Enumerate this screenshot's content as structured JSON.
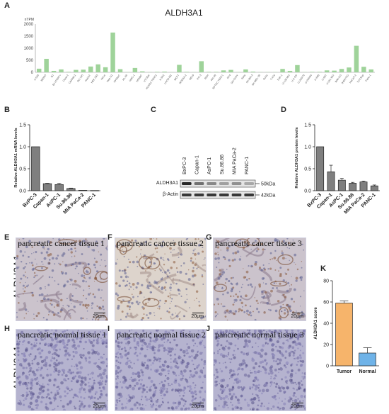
{
  "panels": {
    "a": "A",
    "b": "B",
    "c": "C",
    "d": "D",
    "e": "E",
    "f": "F",
    "g": "G",
    "h": "H",
    "i": "I",
    "j": "J",
    "k": "K"
  },
  "colors": {
    "green": "#9fd39a",
    "gray": "#7f7f7f",
    "orange": "#f6b46b",
    "blue": "#6fb3e8"
  },
  "tissues": {
    "row_label": "ALDH3A1",
    "cancer": [
      "pancreatic cancer tissue 1",
      "pancreatic cancer tissue 2",
      "pancreatic cancer tissue 3"
    ],
    "normal": [
      "pancreatic normal tissue 1",
      "pancreatic normal tissue 2",
      "pancreatic normal tissue 3"
    ],
    "scale": "20μm"
  },
  "western": {
    "lanes": [
      "BxPC-3",
      "Capan-1",
      "AsPC-1",
      "Su.86.86",
      "MIA PaCa-2",
      "PANC-1"
    ],
    "rows": [
      "ALDH3A1",
      "β-Actin"
    ],
    "markers": [
      "50kDa",
      "42kDa"
    ],
    "intensity_aldh": [
      1.0,
      0.55,
      0.4,
      0.25,
      0.35,
      0.2
    ]
  },
  "chart_data": [
    {
      "id": "A",
      "type": "bar",
      "title": "ALDH3A1",
      "ylabel": "nTPM",
      "ylim": [
        0,
        2000
      ],
      "yticks": [
        0,
        500,
        1000,
        1500,
        2000
      ],
      "categories": [
        "A-549",
        "BEWO",
        "BJ",
        "BJ hTERT+",
        "Caco-2",
        "CAPAN-2",
        "DU 145",
        "HaCaT",
        "HEK 293",
        "HeLa",
        "Hep G2",
        "HHSteC",
        "HL-60",
        "HMC-1",
        "HSkMC",
        "hTCEpi",
        "HUVEC TERT2",
        "K-562",
        "LHCN-M2",
        "MCF7",
        "NTERA-2",
        "OE19",
        "PC-3",
        "REH",
        "RH-30",
        "RPTEC TERT1",
        "RT4",
        "SH-SY5Y",
        "SiHa",
        "SK-BR-3",
        "SK-MEL-30",
        "SuSa",
        "T-47d",
        "THP-1",
        "U-138 MG",
        "U-2 OS",
        "U-266/70",
        "U-266/84",
        "U-698",
        "U-937",
        "U-251 MG",
        "WM-115",
        "fHDF/TIG",
        "HaCaT-2",
        "TCCSup",
        "Panc-1"
      ],
      "values": [
        150,
        560,
        60,
        120,
        20,
        100,
        110,
        240,
        330,
        210,
        1650,
        130,
        10,
        180,
        40,
        10,
        20,
        30,
        10,
        310,
        20,
        10,
        460,
        20,
        20,
        80,
        100,
        10,
        120,
        30,
        10,
        10,
        10,
        140,
        60,
        300,
        10,
        20,
        20,
        80,
        70,
        140,
        200,
        1100,
        230,
        120
      ]
    },
    {
      "id": "B",
      "type": "bar",
      "ylabel": "Relative ALDH3A1 mRNA levels",
      "ylim": [
        0,
        1.5
      ],
      "yticks": [
        0.0,
        0.5,
        1.0,
        1.5
      ],
      "categories": [
        "BxPC-3",
        "Capan-1",
        "AsPC-1",
        "Su.86.86",
        "MIA PaCa-2",
        "PANC-1"
      ],
      "values": [
        1.0,
        0.16,
        0.14,
        0.05,
        0.01,
        0.005
      ],
      "errors": [
        0.0,
        0.01,
        0.03,
        0.01,
        0.0,
        0.0
      ]
    },
    {
      "id": "D",
      "type": "bar",
      "ylabel": "Relative ALDH3A1 protein levels",
      "ylim": [
        0,
        1.5
      ],
      "yticks": [
        0.0,
        0.5,
        1.0,
        1.5
      ],
      "categories": [
        "BxPC-3",
        "Capan-1",
        "AsPC-1",
        "Su.86.86",
        "MIA PaCa-2",
        "PANC-1"
      ],
      "values": [
        1.0,
        0.43,
        0.24,
        0.17,
        0.2,
        0.11
      ],
      "errors": [
        0.0,
        0.15,
        0.04,
        0.02,
        0.02,
        0.02
      ]
    },
    {
      "id": "K",
      "type": "bar",
      "ylabel": "ALDH3A1 score",
      "ylim": [
        0,
        80
      ],
      "yticks": [
        0,
        20,
        40,
        60,
        80
      ],
      "categories": [
        "Tumor",
        "Normal"
      ],
      "values": [
        59,
        12
      ],
      "errors": [
        2,
        5
      ]
    }
  ]
}
